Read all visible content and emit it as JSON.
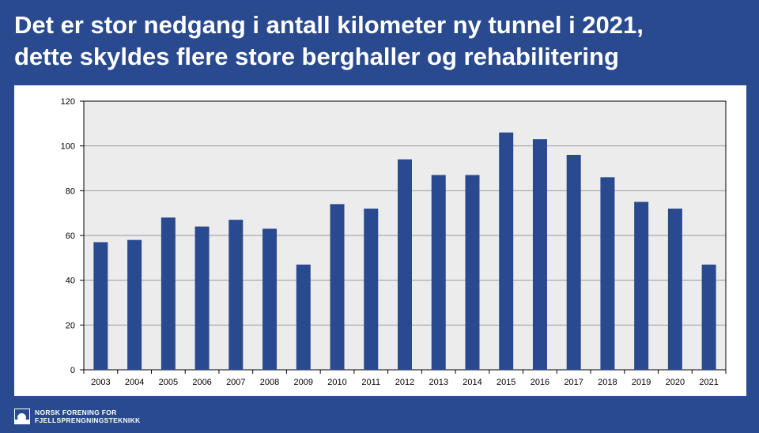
{
  "header": {
    "title_line1": "Det er stor nedgang i antall kilometer ny tunnel i 2021,",
    "title_line2": "dette skyldes flere store berghaller og rehabilitering"
  },
  "footer": {
    "logo_line1": "NORSK FORENING FOR",
    "logo_line2": "FJELLSPRENGNINGSTEKNIKK"
  },
  "colors": {
    "background": "#2a4a8f",
    "bar": "#2a4a8f",
    "plot_area": "#ececec",
    "grid": "#9a9a9a"
  },
  "chart_data": {
    "type": "bar",
    "categories": [
      "2003",
      "2004",
      "2005",
      "2006",
      "2007",
      "2008",
      "2009",
      "2010",
      "2011",
      "2012",
      "2013",
      "2014",
      "2015",
      "2016",
      "2017",
      "2018",
      "2019",
      "2020",
      "2021"
    ],
    "values": [
      57,
      58,
      68,
      64,
      67,
      63,
      47,
      74,
      72,
      94,
      87,
      87,
      106,
      103,
      96,
      86,
      75,
      72,
      47
    ],
    "ylim": [
      0,
      120
    ],
    "yticks": [
      0,
      20,
      40,
      60,
      80,
      100,
      120
    ],
    "ytick_labels": [
      "0",
      "20",
      "40",
      "60",
      "80",
      "100",
      "120"
    ],
    "grid": true,
    "title": "",
    "xlabel": "",
    "ylabel": ""
  }
}
